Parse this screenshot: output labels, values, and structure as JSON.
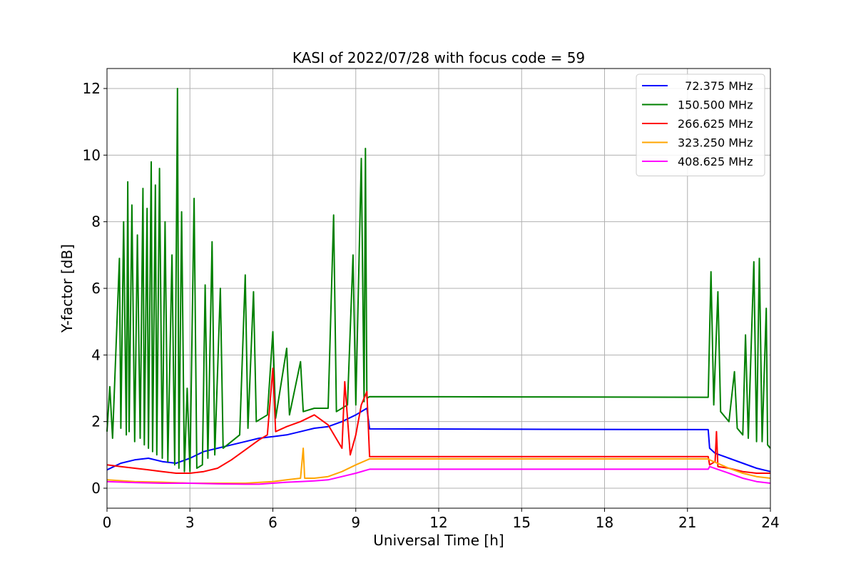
{
  "chart_data": {
    "type": "line",
    "title": "KASI of 2022/07/28 with focus code = 59",
    "xlabel": "Universal Time [h]",
    "ylabel": "Y-factor [dB]",
    "xlim": [
      0,
      24
    ],
    "ylim": [
      -0.6,
      12.6
    ],
    "xticks": [
      0,
      3,
      6,
      9,
      12,
      15,
      18,
      21,
      24
    ],
    "yticks": [
      0,
      2,
      4,
      6,
      8,
      10,
      12
    ],
    "grid": true,
    "legend_position": "top-right",
    "series": [
      {
        "name": "  72.375 MHz",
        "color": "#0000ff",
        "points": [
          [
            0,
            0.55
          ],
          [
            0.5,
            0.75
          ],
          [
            1,
            0.85
          ],
          [
            1.5,
            0.9
          ],
          [
            2,
            0.8
          ],
          [
            2.5,
            0.75
          ],
          [
            3,
            0.9
          ],
          [
            3.5,
            1.1
          ],
          [
            4,
            1.2
          ],
          [
            4.5,
            1.3
          ],
          [
            5,
            1.4
          ],
          [
            5.5,
            1.5
          ],
          [
            6,
            1.55
          ],
          [
            6.5,
            1.6
          ],
          [
            7,
            1.7
          ],
          [
            7.5,
            1.8
          ],
          [
            8,
            1.85
          ],
          [
            8.5,
            2.0
          ],
          [
            9,
            2.2
          ],
          [
            9.4,
            2.4
          ],
          [
            9.5,
            1.78
          ],
          [
            15,
            1.77
          ],
          [
            21.75,
            1.76
          ],
          [
            21.8,
            1.2
          ],
          [
            22,
            1.05
          ],
          [
            22.5,
            0.9
          ],
          [
            23,
            0.75
          ],
          [
            23.5,
            0.6
          ],
          [
            24,
            0.5
          ]
        ]
      },
      {
        "name": "150.500 MHz",
        "color": "#008000",
        "points": [
          [
            0,
            1.7
          ],
          [
            0.1,
            3.05
          ],
          [
            0.2,
            1.5
          ],
          [
            0.45,
            6.9
          ],
          [
            0.5,
            1.8
          ],
          [
            0.6,
            8.0
          ],
          [
            0.7,
            1.6
          ],
          [
            0.75,
            9.2
          ],
          [
            0.8,
            1.7
          ],
          [
            0.9,
            8.5
          ],
          [
            1.0,
            1.4
          ],
          [
            1.1,
            7.6
          ],
          [
            1.2,
            1.5
          ],
          [
            1.3,
            9.0
          ],
          [
            1.35,
            1.3
          ],
          [
            1.45,
            8.4
          ],
          [
            1.5,
            1.2
          ],
          [
            1.6,
            9.8
          ],
          [
            1.65,
            1.1
          ],
          [
            1.75,
            9.1
          ],
          [
            1.8,
            1.0
          ],
          [
            1.9,
            9.6
          ],
          [
            2.0,
            0.9
          ],
          [
            2.1,
            8.0
          ],
          [
            2.2,
            0.8
          ],
          [
            2.35,
            7.0
          ],
          [
            2.45,
            0.7
          ],
          [
            2.55,
            12.0
          ],
          [
            2.6,
            0.6
          ],
          [
            2.7,
            8.3
          ],
          [
            2.8,
            0.5
          ],
          [
            2.9,
            3.0
          ],
          [
            3.0,
            0.5
          ],
          [
            3.15,
            8.7
          ],
          [
            3.25,
            0.6
          ],
          [
            3.45,
            0.7
          ],
          [
            3.55,
            6.1
          ],
          [
            3.65,
            0.9
          ],
          [
            3.8,
            7.4
          ],
          [
            3.9,
            1.0
          ],
          [
            4.1,
            6.0
          ],
          [
            4.2,
            1.2
          ],
          [
            4.5,
            1.4
          ],
          [
            4.8,
            1.6
          ],
          [
            5.0,
            6.4
          ],
          [
            5.1,
            1.8
          ],
          [
            5.3,
            5.9
          ],
          [
            5.4,
            2.0
          ],
          [
            5.8,
            2.2
          ],
          [
            6.0,
            4.7
          ],
          [
            6.1,
            2.1
          ],
          [
            6.5,
            4.2
          ],
          [
            6.6,
            2.2
          ],
          [
            7.0,
            3.8
          ],
          [
            7.1,
            2.3
          ],
          [
            7.5,
            2.4
          ],
          [
            8.0,
            2.4
          ],
          [
            8.2,
            8.2
          ],
          [
            8.3,
            2.3
          ],
          [
            8.7,
            2.5
          ],
          [
            8.9,
            7.0
          ],
          [
            9.0,
            2.5
          ],
          [
            9.2,
            9.9
          ],
          [
            9.3,
            2.6
          ],
          [
            9.35,
            10.2
          ],
          [
            9.4,
            2.7
          ],
          [
            9.5,
            2.75
          ],
          [
            15,
            2.74
          ],
          [
            21.75,
            2.73
          ],
          [
            21.85,
            6.5
          ],
          [
            21.95,
            2.5
          ],
          [
            22.1,
            5.9
          ],
          [
            22.2,
            2.3
          ],
          [
            22.5,
            2.0
          ],
          [
            22.7,
            3.5
          ],
          [
            22.8,
            1.8
          ],
          [
            23.0,
            1.6
          ],
          [
            23.1,
            4.6
          ],
          [
            23.2,
            1.5
          ],
          [
            23.4,
            6.8
          ],
          [
            23.5,
            1.4
          ],
          [
            23.6,
            6.9
          ],
          [
            23.7,
            1.4
          ],
          [
            23.85,
            5.4
          ],
          [
            23.9,
            1.3
          ],
          [
            24,
            1.2
          ]
        ]
      },
      {
        "name": "266.625 MHz",
        "color": "#ff0000",
        "points": [
          [
            0,
            0.7
          ],
          [
            0.5,
            0.65
          ],
          [
            1,
            0.6
          ],
          [
            1.5,
            0.55
          ],
          [
            2,
            0.5
          ],
          [
            2.5,
            0.45
          ],
          [
            3,
            0.45
          ],
          [
            3.5,
            0.5
          ],
          [
            4,
            0.6
          ],
          [
            4.5,
            0.85
          ],
          [
            5,
            1.15
          ],
          [
            5.5,
            1.45
          ],
          [
            5.8,
            1.6
          ],
          [
            6,
            3.6
          ],
          [
            6.1,
            1.7
          ],
          [
            6.5,
            1.85
          ],
          [
            7,
            2.0
          ],
          [
            7.5,
            2.2
          ],
          [
            8,
            1.9
          ],
          [
            8.5,
            1.2
          ],
          [
            8.6,
            3.2
          ],
          [
            8.8,
            1.0
          ],
          [
            9,
            1.6
          ],
          [
            9.2,
            2.5
          ],
          [
            9.4,
            2.9
          ],
          [
            9.5,
            0.95
          ],
          [
            15,
            0.95
          ],
          [
            21.75,
            0.95
          ],
          [
            21.8,
            0.7
          ],
          [
            22.0,
            0.8
          ],
          [
            22.05,
            1.7
          ],
          [
            22.1,
            0.65
          ],
          [
            22.5,
            0.6
          ],
          [
            23,
            0.5
          ],
          [
            23.5,
            0.45
          ],
          [
            24,
            0.45
          ]
        ]
      },
      {
        "name": "323.250 MHz",
        "color": "#ffa500",
        "points": [
          [
            0,
            0.25
          ],
          [
            1,
            0.2
          ],
          [
            2,
            0.18
          ],
          [
            3,
            0.15
          ],
          [
            4,
            0.15
          ],
          [
            5,
            0.15
          ],
          [
            6,
            0.2
          ],
          [
            6.5,
            0.25
          ],
          [
            7,
            0.3
          ],
          [
            7.1,
            1.2
          ],
          [
            7.15,
            0.3
          ],
          [
            7.5,
            0.3
          ],
          [
            8,
            0.35
          ],
          [
            8.5,
            0.5
          ],
          [
            9,
            0.7
          ],
          [
            9.5,
            0.88
          ],
          [
            15,
            0.88
          ],
          [
            21.75,
            0.88
          ],
          [
            21.8,
            0.85
          ],
          [
            22.5,
            0.6
          ],
          [
            23,
            0.45
          ],
          [
            23.5,
            0.35
          ],
          [
            24,
            0.3
          ]
        ]
      },
      {
        "name": "408.625 MHz",
        "color": "#ff00ff",
        "points": [
          [
            0,
            0.2
          ],
          [
            1,
            0.17
          ],
          [
            2,
            0.15
          ],
          [
            3,
            0.15
          ],
          [
            4,
            0.13
          ],
          [
            5,
            0.12
          ],
          [
            5.5,
            0.12
          ],
          [
            6,
            0.15
          ],
          [
            6.5,
            0.18
          ],
          [
            7,
            0.2
          ],
          [
            7.5,
            0.22
          ],
          [
            8,
            0.25
          ],
          [
            8.5,
            0.35
          ],
          [
            9,
            0.45
          ],
          [
            9.5,
            0.57
          ],
          [
            15,
            0.57
          ],
          [
            21.75,
            0.57
          ],
          [
            21.8,
            0.65
          ],
          [
            22.5,
            0.45
          ],
          [
            23,
            0.3
          ],
          [
            23.5,
            0.2
          ],
          [
            24,
            0.15
          ]
        ]
      }
    ]
  }
}
